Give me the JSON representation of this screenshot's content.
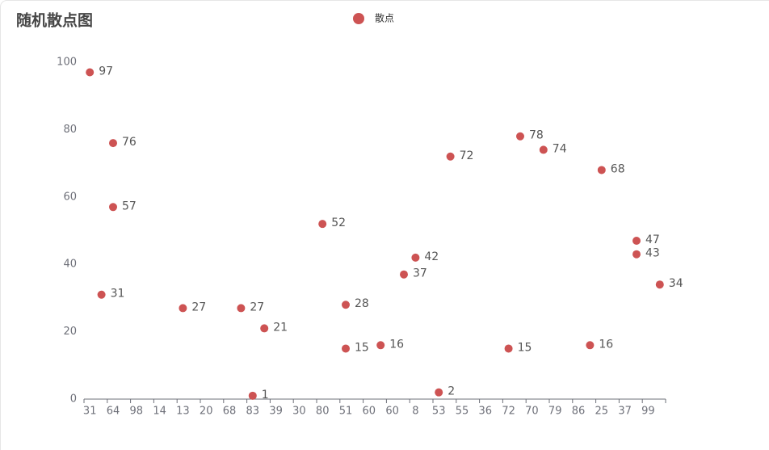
{
  "chart_data": {
    "type": "scatter",
    "title": "随机散点图",
    "categories": [
      "31",
      null,
      "64",
      null,
      "98",
      null,
      "14",
      null,
      "13",
      null,
      "20",
      null,
      "68",
      null,
      "83",
      null,
      "39",
      null,
      "30",
      null,
      "80",
      null,
      "51",
      null,
      "60",
      null,
      "60",
      null,
      "8",
      null,
      "53",
      null,
      "55",
      null,
      "36",
      null,
      "72",
      null,
      "70",
      null,
      "79",
      null,
      "86",
      null,
      "25",
      null,
      "37",
      null,
      "99",
      null
    ],
    "series": [
      {
        "name": "散点",
        "color": "#cd5353",
        "x": [
          0,
          2,
          2,
          1,
          8,
          13,
          15,
          14,
          20,
          22,
          22,
          25,
          27,
          28,
          30,
          31,
          37,
          39,
          36,
          44,
          43,
          47,
          47,
          49
        ],
        "values": [
          97,
          76,
          57,
          31,
          27,
          27,
          21,
          1,
          52,
          28,
          15,
          16,
          37,
          42,
          2,
          72,
          78,
          74,
          15,
          68,
          16,
          47,
          43,
          34
        ]
      }
    ],
    "ylim": [
      0,
      100
    ],
    "yticks": [
      0,
      20,
      40,
      60,
      80,
      100
    ],
    "grid": false
  }
}
